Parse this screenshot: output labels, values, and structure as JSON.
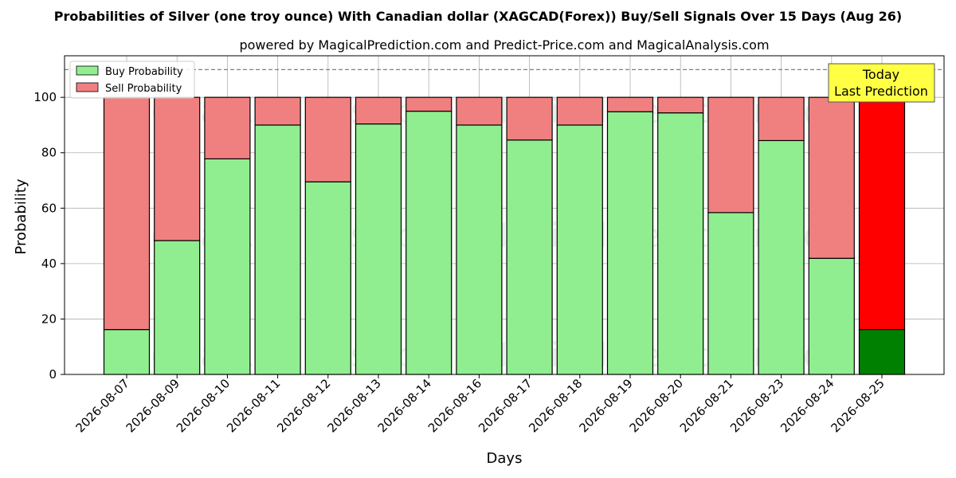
{
  "chart_data": {
    "type": "bar",
    "stacked": true,
    "title": "Probabilities of Silver (one troy ounce) With Canadian dollar (XAGCAD(Forex)) Buy/Sell Signals Over 15 Days (Aug 26)",
    "subtitle": "powered by MagicalPrediction.com and Predict-Price.com and MagicalAnalysis.com",
    "xlabel": "Days",
    "ylabel": "Probability",
    "ylim": [
      0,
      115
    ],
    "yticks": [
      0,
      20,
      40,
      60,
      80,
      100
    ],
    "reference_line": 110,
    "grid": true,
    "legend_position": "top-left",
    "categories": [
      "2026-08-07",
      "2026-08-09",
      "2026-08-10",
      "2026-08-11",
      "2026-08-12",
      "2026-08-13",
      "2026-08-14",
      "2026-08-16",
      "2026-08-17",
      "2026-08-18",
      "2026-08-19",
      "2026-08-20",
      "2026-08-21",
      "2026-08-23",
      "2026-08-24",
      "2026-08-25"
    ],
    "series": [
      {
        "name": "Buy Probability",
        "color": "#90ee90",
        "highlight_color": "#008000",
        "values": [
          16.2,
          48.3,
          77.8,
          90.0,
          69.5,
          90.4,
          95.0,
          90.0,
          84.6,
          90.0,
          94.8,
          94.4,
          58.4,
          84.4,
          41.9,
          16.2
        ]
      },
      {
        "name": "Sell Probability",
        "color": "#f08080",
        "highlight_color": "#ff0000",
        "values": [
          83.8,
          51.7,
          22.2,
          10.0,
          30.5,
          9.6,
          5.0,
          10.0,
          15.4,
          10.0,
          5.2,
          5.6,
          41.6,
          15.6,
          58.1,
          83.8
        ]
      }
    ],
    "highlight_index": 15,
    "annotation": {
      "lines": [
        "Today",
        "Last Prediction"
      ],
      "background": "#ffff44"
    },
    "watermarks": [
      "MagicalAnalysis.com",
      "MagicalPrediction.com"
    ]
  }
}
